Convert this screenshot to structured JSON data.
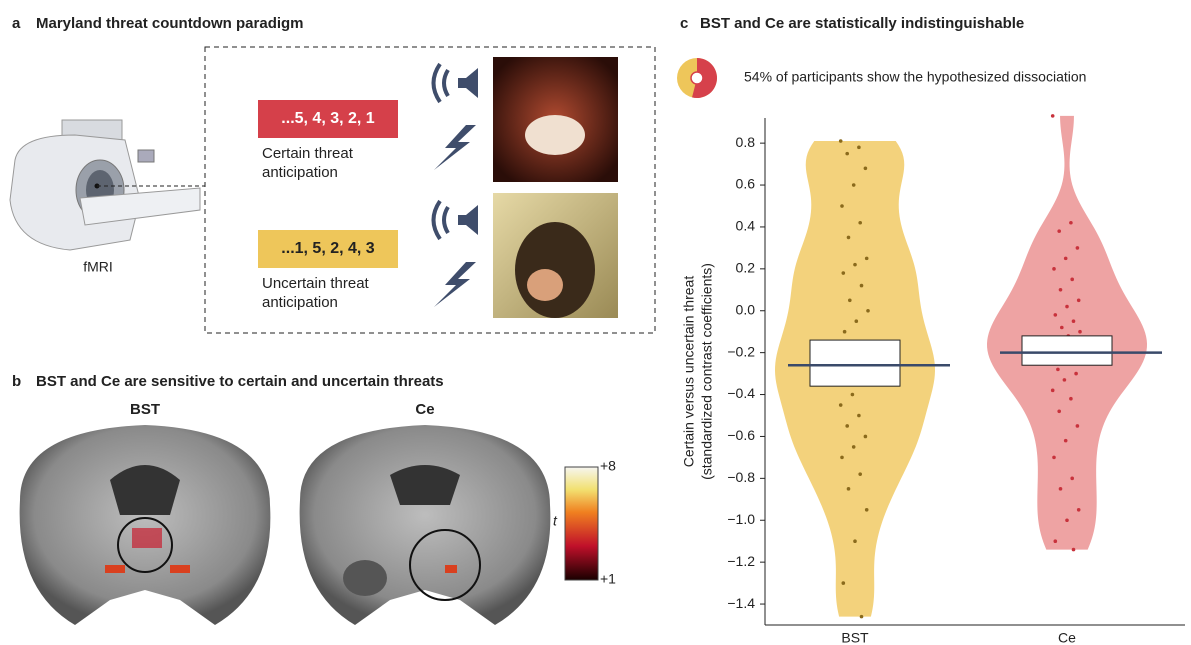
{
  "panel_a": {
    "label": "a",
    "title": "Maryland threat countdown paradigm",
    "scanner_label": "fMRI",
    "certain": {
      "sequence": "...5, 4, 3, 2, 1",
      "label": "Certain threat anticipation"
    },
    "uncertain": {
      "sequence": "...1, 5, 2, 4, 3",
      "label": "Uncertain threat anticipation"
    }
  },
  "panel_b": {
    "label": "b",
    "title": "BST and Ce are sensitive to certain and uncertain threats",
    "brains": [
      "BST",
      "Ce"
    ],
    "colorbar": {
      "label": "t",
      "max_label": "+8",
      "min_label": "+1"
    }
  },
  "panel_c": {
    "label": "c",
    "title": "BST and Ce are statistically indistinguishable",
    "pie_value": 54,
    "pie_text": "54% of participants show the hypothesized dissociation"
  },
  "chart_data": {
    "type": "violin",
    "ylabel": "Certain versus uncertain threat",
    "ylabel_sub": "(standardized contrast coefficients)",
    "categories": [
      "BST",
      "Ce"
    ],
    "ylim": [
      -1.5,
      0.92
    ],
    "yticks": [
      {
        "value": -1.4,
        "label": "−1.4"
      },
      {
        "value": -1.2,
        "label": "−1.2"
      },
      {
        "value": -1.0,
        "label": "−1.0"
      },
      {
        "value": -0.8,
        "label": "−0.8"
      },
      {
        "value": -0.6,
        "label": "−0.6"
      },
      {
        "value": -0.4,
        "label": "−0.4"
      },
      {
        "value": -0.2,
        "label": "−0.2"
      },
      {
        "value": 0,
        "label": "0.0"
      },
      0.2,
      0.4,
      0.6,
      0.8
    ],
    "groups": [
      {
        "color": "#f3d27c",
        "point_color": "#8a6a1c",
        "q1": -0.36,
        "median": -0.26,
        "q3": -0.14,
        "values": [
          0.81,
          0.78,
          0.75,
          0.68,
          0.6,
          0.5,
          0.42,
          0.35,
          0.25,
          0.22,
          0.18,
          0.12,
          0.05,
          0.0,
          -0.05,
          -0.1,
          -0.15,
          -0.2,
          -0.25,
          -0.28,
          -0.3,
          -0.35,
          -0.4,
          -0.45,
          -0.5,
          -0.55,
          -0.6,
          -0.65,
          -0.7,
          -0.78,
          -0.85,
          -0.95,
          -1.1,
          -1.3,
          -1.46
        ]
      },
      {
        "color": "#eea3a3",
        "point_color": "#c8323c",
        "q1": -0.26,
        "median": -0.2,
        "q3": -0.12,
        "values": [
          0.93,
          0.42,
          0.38,
          0.3,
          0.25,
          0.2,
          0.15,
          0.1,
          0.05,
          0.02,
          -0.02,
          -0.05,
          -0.08,
          -0.1,
          -0.12,
          -0.15,
          -0.18,
          -0.2,
          -0.22,
          -0.25,
          -0.28,
          -0.3,
          -0.33,
          -0.38,
          -0.42,
          -0.48,
          -0.55,
          -0.62,
          -0.7,
          -0.8,
          -0.85,
          -0.95,
          -1.0,
          -1.1,
          -1.14
        ]
      }
    ]
  }
}
